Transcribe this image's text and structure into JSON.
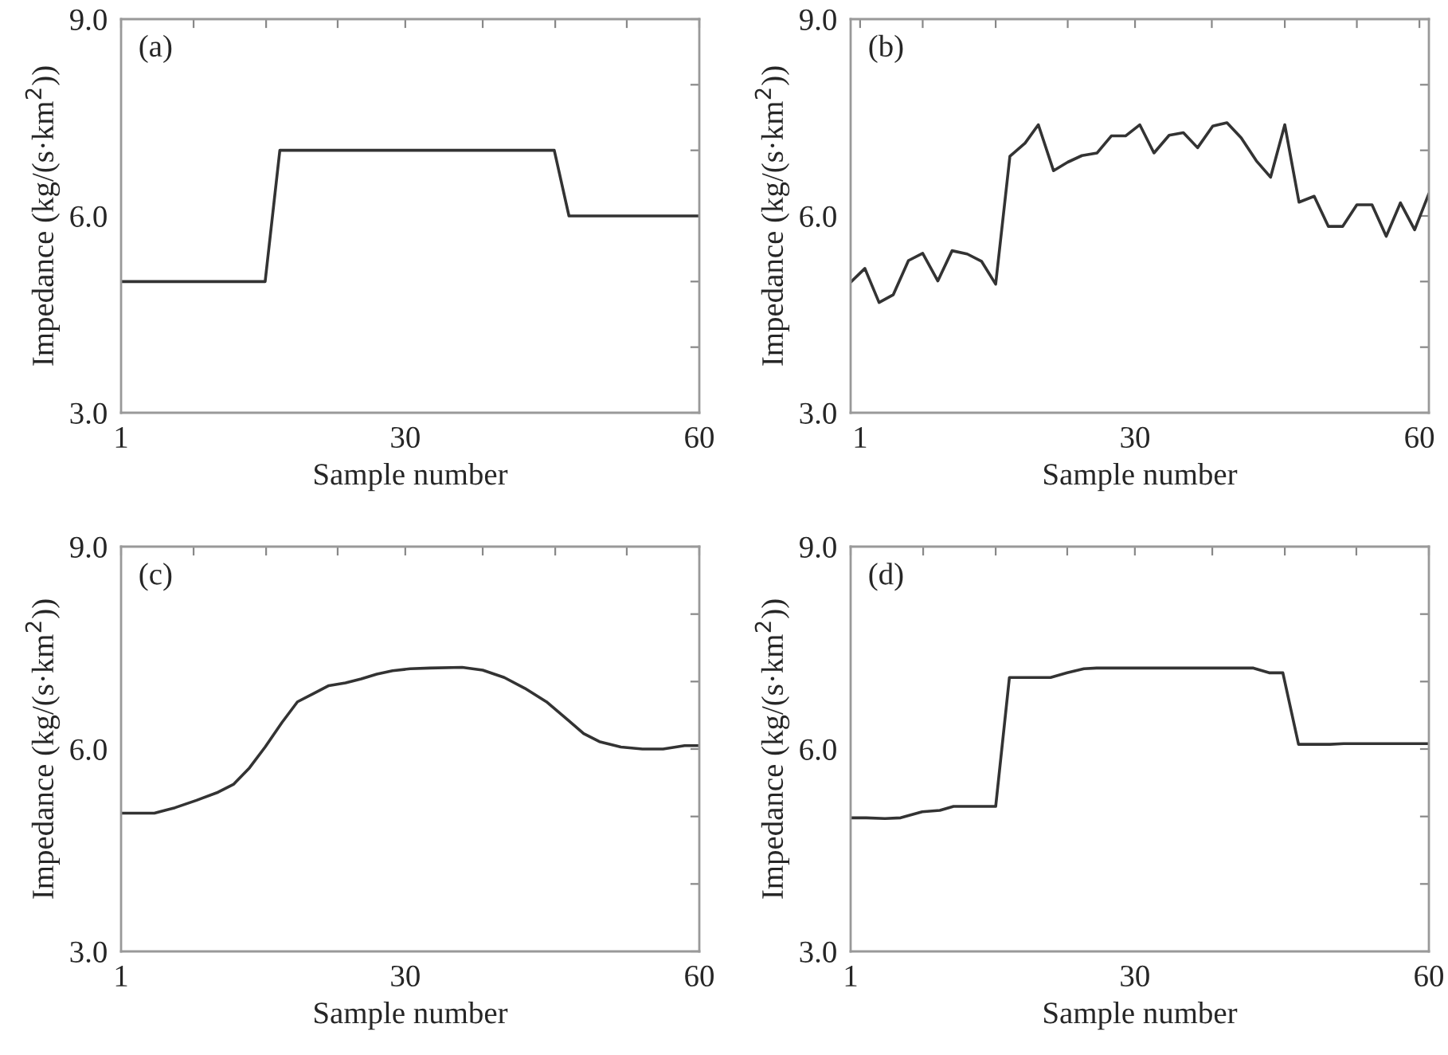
{
  "chart_data": [
    {
      "type": "line",
      "xlabel": "Sample number",
      "ylabel": "Impedance (kg/(s·km$^{2}$))",
      "annotations": [
        "(a)"
      ],
      "color": "#333333",
      "x": [
        1,
        15.7,
        17.2,
        45.2,
        46.7,
        60
      ],
      "values": [
        5.0,
        5.0,
        7.0,
        7.0,
        6.0,
        6.0
      ],
      "xlim": [
        1,
        60
      ],
      "xticks": [
        1,
        {
          "value": 8.4,
          "label": null
        },
        {
          "value": 15.8,
          "label": null
        },
        {
          "value": 23.1,
          "label": null
        },
        30,
        {
          "value": 37.9,
          "label": null
        },
        {
          "value": 45.3,
          "label": null
        },
        {
          "value": 52.6,
          "label": null
        },
        60
      ],
      "ylim": [
        3,
        9
      ],
      "yticks": [
        {
          "value": 3,
          "label": "3.0"
        },
        {
          "value": 4,
          "label": null
        },
        {
          "value": 5,
          "label": null
        },
        {
          "value": 6,
          "label": "6.0"
        },
        {
          "value": 7,
          "label": null
        },
        {
          "value": 8,
          "label": null
        },
        {
          "value": 9,
          "label": "9.0"
        }
      ]
    },
    {
      "type": "line",
      "xlabel": "Sample number",
      "ylabel": "Impedance (kg/(s·km$^{2}$))",
      "annotations": [
        "(b)"
      ],
      "color": "#333333",
      "x": [
        0,
        1.5,
        3.0,
        4.5,
        6.1,
        7.6,
        9.2,
        10.7,
        12.3,
        13.8,
        15.3,
        16.8,
        18.4,
        19.8,
        21.4,
        22.9,
        24.4,
        26.0,
        27.5,
        29.0,
        30.5,
        32.0,
        33.6,
        35.1,
        36.6,
        38.2,
        39.7,
        41.2,
        42.8,
        44.3,
        45.8,
        47.3,
        48.9,
        50.4,
        51.9,
        53.4,
        55.0,
        56.5,
        58.0,
        59.5,
        61
      ],
      "values": [
        4.99,
        5.2,
        4.68,
        4.8,
        5.32,
        5.43,
        5.01,
        5.47,
        5.42,
        5.31,
        4.96,
        6.91,
        7.11,
        7.39,
        6.69,
        6.82,
        6.92,
        6.96,
        7.22,
        7.22,
        7.39,
        6.96,
        7.23,
        7.27,
        7.04,
        7.37,
        7.42,
        7.19,
        6.84,
        6.59,
        7.39,
        6.21,
        6.3,
        5.84,
        5.84,
        6.17,
        6.17,
        5.69,
        6.2,
        5.79,
        6.34
      ],
      "xlim": [
        0,
        61
      ],
      "xticks": [
        1,
        {
          "value": 7.6,
          "label": null
        },
        {
          "value": 15.3,
          "label": null
        },
        {
          "value": 22.9,
          "label": null
        },
        30,
        {
          "value": 38.1,
          "label": null
        },
        {
          "value": 45.8,
          "label": null
        },
        {
          "value": 53.4,
          "label": null
        },
        60
      ],
      "ylim": [
        3,
        9
      ],
      "yticks": [
        {
          "value": 3,
          "label": "3.0"
        },
        {
          "value": 4,
          "label": null
        },
        {
          "value": 5,
          "label": null
        },
        {
          "value": 6,
          "label": "6.0"
        },
        {
          "value": 7,
          "label": null
        },
        {
          "value": 8,
          "label": null
        },
        {
          "value": 9,
          "label": "9.0"
        }
      ]
    },
    {
      "type": "line",
      "xlabel": "Sample number",
      "ylabel": "Impedance (kg/(s·km$^{2}$))",
      "annotations": [
        "(c)"
      ],
      "color": "#333333",
      "x": [
        1,
        4.4,
        6.5,
        8.7,
        10.9,
        12.5,
        14.1,
        15.7,
        17.4,
        19.0,
        20.6,
        22.2,
        23.9,
        25.5,
        27.1,
        28.7,
        30.5,
        32.5,
        35.8,
        37.9,
        40.1,
        42.2,
        44.4,
        46.6,
        48.2,
        49.8,
        52.0,
        54.2,
        56.3,
        58.5,
        60
      ],
      "values": [
        5.05,
        5.05,
        5.13,
        5.24,
        5.36,
        5.48,
        5.72,
        6.03,
        6.39,
        6.7,
        6.82,
        6.94,
        6.98,
        7.04,
        7.11,
        7.16,
        7.19,
        7.2,
        7.21,
        7.17,
        7.06,
        6.9,
        6.7,
        6.43,
        6.23,
        6.11,
        6.03,
        6.0,
        6.0,
        6.05,
        6.05
      ],
      "xlim": [
        1,
        60
      ],
      "xticks": [
        1,
        {
          "value": 8.4,
          "label": null
        },
        {
          "value": 15.8,
          "label": null
        },
        {
          "value": 23.1,
          "label": null
        },
        30,
        {
          "value": 37.9,
          "label": null
        },
        {
          "value": 45.3,
          "label": null
        },
        {
          "value": 52.6,
          "label": null
        },
        60
      ],
      "ylim": [
        3,
        9
      ],
      "yticks": [
        {
          "value": 3,
          "label": "3.0"
        },
        {
          "value": 4,
          "label": null
        },
        {
          "value": 5,
          "label": null
        },
        {
          "value": 6,
          "label": "6.0"
        },
        {
          "value": 7,
          "label": null
        },
        {
          "value": 8,
          "label": null
        },
        {
          "value": 9,
          "label": "9.0"
        }
      ]
    },
    {
      "type": "line",
      "xlabel": "Sample number",
      "ylabel": "Impedance (kg/(s·km$^{2}$))",
      "annotations": [
        "(d)"
      ],
      "color": "#333333",
      "x": [
        1,
        2.6,
        4.5,
        6.1,
        8.3,
        10.1,
        11.5,
        15.8,
        17.2,
        21.4,
        23.1,
        24.8,
        26.1,
        42.1,
        43.7,
        45.1,
        46.7,
        49.9,
        51.3,
        60
      ],
      "values": [
        4.98,
        4.98,
        4.97,
        4.98,
        5.07,
        5.09,
        5.15,
        5.15,
        7.06,
        7.06,
        7.13,
        7.19,
        7.2,
        7.2,
        7.13,
        7.13,
        6.07,
        6.07,
        6.08,
        6.08
      ],
      "xlim": [
        1,
        60
      ],
      "xticks": [
        1,
        {
          "value": 8.4,
          "label": null
        },
        {
          "value": 15.8,
          "label": null
        },
        {
          "value": 23.1,
          "label": null
        },
        30,
        {
          "value": 37.9,
          "label": null
        },
        {
          "value": 45.3,
          "label": null
        },
        {
          "value": 52.6,
          "label": null
        },
        60
      ],
      "ylim": [
        3,
        9
      ],
      "yticks": [
        {
          "value": 3,
          "label": "3.0"
        },
        {
          "value": 4,
          "label": null
        },
        {
          "value": 5,
          "label": null
        },
        {
          "value": 6,
          "label": "6.0"
        },
        {
          "value": 7,
          "label": null
        },
        {
          "value": 8,
          "label": null
        },
        {
          "value": 9,
          "label": "9.0"
        }
      ]
    }
  ]
}
